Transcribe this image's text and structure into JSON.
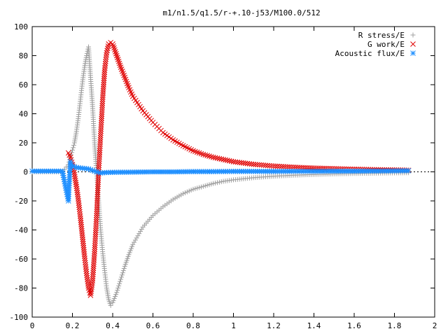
{
  "chart_data": {
    "type": "scatter",
    "title": "m1/n1.5/q1.5/r-+.10-j53/M100.0/512",
    "xlabel": "",
    "ylabel": "",
    "xlim": [
      0,
      2
    ],
    "ylim": [
      -100,
      100
    ],
    "xticks": [
      "0",
      "0.2",
      "0.4",
      "0.6",
      "0.8",
      "1",
      "1.2",
      "1.4",
      "1.6",
      "1.8",
      "2"
    ],
    "yticks": [
      "-100",
      "-80",
      "-60",
      "-40",
      "-20",
      "0",
      "20",
      "40",
      "60",
      "80",
      "100"
    ],
    "grid": false,
    "legend_position": "top-right",
    "series": [
      {
        "name": "R stress/E",
        "marker": "plus",
        "color": "#a0a0a0",
        "x": [
          0.0,
          0.05,
          0.1,
          0.15,
          0.18,
          0.19,
          0.2,
          0.21,
          0.22,
          0.23,
          0.24,
          0.25,
          0.26,
          0.27,
          0.28,
          0.29,
          0.3,
          0.31,
          0.32,
          0.33,
          0.34,
          0.35,
          0.36,
          0.37,
          0.38,
          0.39,
          0.4,
          0.42,
          0.44,
          0.46,
          0.48,
          0.5,
          0.55,
          0.6,
          0.65,
          0.7,
          0.75,
          0.8,
          0.85,
          0.9,
          0.95,
          1.0,
          1.1,
          1.2,
          1.3,
          1.4,
          1.5,
          1.6,
          1.7,
          1.8,
          1.87
        ],
        "y": [
          0,
          0,
          0,
          0,
          5,
          10,
          15,
          20,
          28,
          38,
          50,
          62,
          72,
          80,
          86,
          65,
          45,
          20,
          0,
          -20,
          -40,
          -55,
          -68,
          -80,
          -88,
          -92,
          -90,
          -83,
          -74,
          -65,
          -57,
          -50,
          -38,
          -30,
          -24,
          -19,
          -15,
          -12,
          -10,
          -8,
          -6.5,
          -5.5,
          -4,
          -3,
          -2.3,
          -1.8,
          -1.4,
          -1.1,
          -0.9,
          -0.7,
          -0.6
        ]
      },
      {
        "name": "G work/E",
        "marker": "cross",
        "color": "#e00000",
        "x": [
          0.18,
          0.19,
          0.2,
          0.21,
          0.22,
          0.23,
          0.24,
          0.25,
          0.26,
          0.27,
          0.28,
          0.29,
          0.3,
          0.31,
          0.32,
          0.33,
          0.34,
          0.35,
          0.36,
          0.37,
          0.38,
          0.39,
          0.4,
          0.42,
          0.44,
          0.46,
          0.48,
          0.5,
          0.55,
          0.6,
          0.65,
          0.7,
          0.75,
          0.8,
          0.85,
          0.9,
          0.95,
          1.0,
          1.1,
          1.2,
          1.3,
          1.4,
          1.5,
          1.6,
          1.7,
          1.8,
          1.87
        ],
        "y": [
          13,
          10,
          5,
          -2,
          -10,
          -20,
          -32,
          -45,
          -58,
          -70,
          -80,
          -85,
          -75,
          -55,
          -30,
          0,
          25,
          50,
          70,
          82,
          88,
          89,
          88,
          80,
          72,
          65,
          58,
          52,
          42,
          34,
          27,
          22,
          18,
          14.5,
          12,
          10,
          8.5,
          7,
          5.2,
          4,
          3.2,
          2.6,
          2.2,
          1.8,
          1.5,
          1.3,
          1.1
        ]
      },
      {
        "name": "Acoustic flux/E",
        "marker": "star",
        "color": "#1e8fff",
        "x": [
          0.0,
          0.05,
          0.1,
          0.15,
          0.18,
          0.185,
          0.19,
          0.195,
          0.2,
          0.22,
          0.25,
          0.28,
          0.3,
          0.32,
          0.34,
          0.36,
          0.4,
          0.5,
          0.6,
          0.7,
          0.8,
          0.9,
          1.0,
          1.1,
          1.2,
          1.3,
          1.4,
          1.5,
          1.6,
          1.7,
          1.8,
          1.87
        ],
        "y": [
          0.5,
          0.5,
          0.5,
          0.5,
          -20,
          -5,
          7,
          5,
          4,
          3,
          2.5,
          2,
          1,
          0,
          -0.8,
          -0.5,
          -0.3,
          -0.2,
          0,
          0,
          0.2,
          0.2,
          0.3,
          0.3,
          0.3,
          0.4,
          0.4,
          0.5,
          0.5,
          0.6,
          0.7,
          0.8
        ]
      }
    ]
  }
}
